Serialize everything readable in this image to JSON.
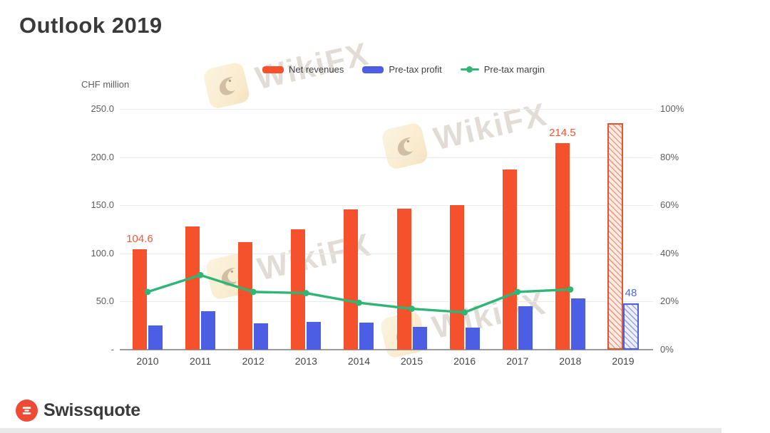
{
  "title": "Outlook 2019",
  "unit_label": "CHF million",
  "watermark": {
    "text": "WikiFX"
  },
  "footer": {
    "brand": "Swissquote"
  },
  "legend": {
    "items": [
      {
        "label": "Net revenues",
        "marker": "bar"
      },
      {
        "label": "Pre-tax profit",
        "marker": "bar"
      },
      {
        "label": "Pre-tax margin",
        "marker": "line"
      }
    ]
  },
  "chart_data": {
    "type": "bar",
    "subtype": "combo bar + line, dual axis",
    "title": "Outlook 2019",
    "ylabel": "CHF million",
    "xlabel": "",
    "grid": true,
    "legend_position": "top",
    "categories": [
      "2010",
      "2011",
      "2012",
      "2013",
      "2014",
      "2015",
      "2016",
      "2017",
      "2018",
      "2019"
    ],
    "series": [
      {
        "name": "Net revenues",
        "type": "bar",
        "axis": "left",
        "color": "#F4512C",
        "values": [
          104.6,
          128,
          112,
          125,
          145.5,
          146.5,
          150,
          187.5,
          214.5,
          235
        ],
        "forecast_categories": [
          "2019"
        ]
      },
      {
        "name": "Pre-tax profit",
        "type": "bar",
        "axis": "left",
        "color": "#4C5FE4",
        "values": [
          25,
          40,
          27,
          29,
          28,
          24,
          23,
          45,
          53,
          48
        ],
        "forecast_categories": [
          "2019"
        ]
      },
      {
        "name": "Pre-tax margin",
        "type": "line",
        "axis": "right",
        "color": "#2FB675",
        "values": [
          24,
          31,
          24,
          23.5,
          19.5,
          17,
          15.5,
          24,
          25,
          null
        ]
      }
    ],
    "left_axis": {
      "title": "CHF million",
      "min": 0,
      "max": 250,
      "tick_labels": [
        "250.0",
        "200.0",
        "150.0",
        "100.0",
        "50.0",
        "-"
      ]
    },
    "right_axis": {
      "min": 0,
      "max": 100,
      "tick_labels": [
        "100%",
        "80%",
        "60%",
        "40%",
        "20%",
        "0%"
      ]
    },
    "data_labels": [
      {
        "category": "2010",
        "series": "Net revenues",
        "text": "104.6",
        "color": "#F2573A"
      },
      {
        "category": "2018",
        "series": "Net revenues",
        "text": "214.5",
        "color": "#F2573A"
      },
      {
        "category": "2019",
        "series": "Pre-tax profit",
        "text": "48",
        "color": "#5566E0"
      }
    ]
  }
}
